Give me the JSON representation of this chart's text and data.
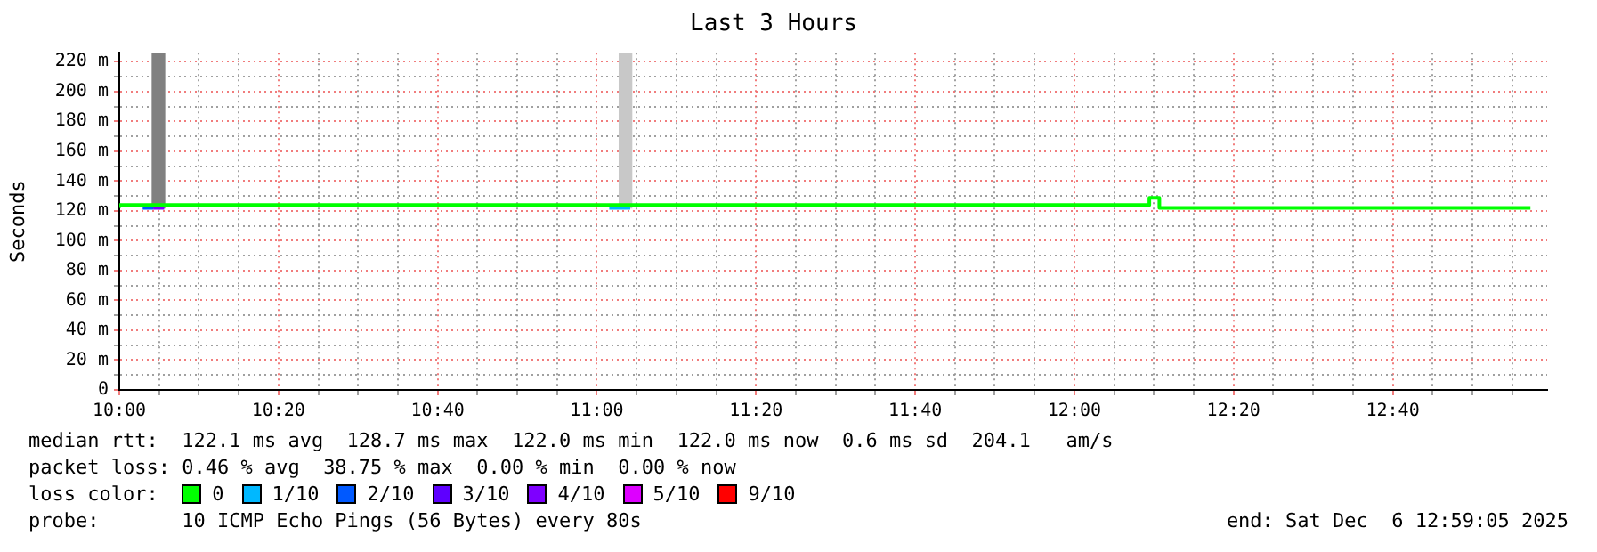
{
  "chart_data": {
    "type": "step",
    "title": "Last 3 Hours",
    "ylabel": "Seconds",
    "xlim": [
      10,
      12.99
    ],
    "ylim": [
      0,
      226
    ],
    "xticks": [
      {
        "value": 10,
        "label": "10:00"
      },
      {
        "value": 10.0833,
        "label": null
      },
      {
        "value": 10.1667,
        "label": null
      },
      {
        "value": 10.25,
        "label": null
      },
      {
        "value": 10.3333,
        "label": "10:20"
      },
      {
        "value": 10.4167,
        "label": null
      },
      {
        "value": 10.5,
        "label": null
      },
      {
        "value": 10.5833,
        "label": null
      },
      {
        "value": 10.6667,
        "label": "10:40"
      },
      {
        "value": 10.75,
        "label": null
      },
      {
        "value": 10.8333,
        "label": null
      },
      {
        "value": 10.9167,
        "label": null
      },
      {
        "value": 11,
        "label": "11:00"
      },
      {
        "value": 11.0833,
        "label": null
      },
      {
        "value": 11.1667,
        "label": null
      },
      {
        "value": 11.25,
        "label": null
      },
      {
        "value": 11.3333,
        "label": "11:20"
      },
      {
        "value": 11.4167,
        "label": null
      },
      {
        "value": 11.5,
        "label": null
      },
      {
        "value": 11.5833,
        "label": null
      },
      {
        "value": 11.6667,
        "label": "11:40"
      },
      {
        "value": 11.75,
        "label": null
      },
      {
        "value": 11.8333,
        "label": null
      },
      {
        "value": 11.9167,
        "label": null
      },
      {
        "value": 12,
        "label": "12:00"
      },
      {
        "value": 12.0833,
        "label": null
      },
      {
        "value": 12.1667,
        "label": null
      },
      {
        "value": 12.25,
        "label": null
      },
      {
        "value": 12.3333,
        "label": "12:20"
      },
      {
        "value": 12.4167,
        "label": null
      },
      {
        "value": 12.5,
        "label": null
      },
      {
        "value": 12.5833,
        "label": null
      },
      {
        "value": 12.6667,
        "label": "12:40"
      },
      {
        "value": 12.75,
        "label": null
      },
      {
        "value": 12.8333,
        "label": null
      },
      {
        "value": 12.9167,
        "label": null
      }
    ],
    "yticks": [
      0,
      {
        "value": 10,
        "label": null
      },
      {
        "value": 20,
        "label": "20 m"
      },
      {
        "value": 30,
        "label": null
      },
      {
        "value": 40,
        "label": "40 m"
      },
      {
        "value": 50,
        "label": null
      },
      {
        "value": 60,
        "label": "60 m"
      },
      {
        "value": 70,
        "label": null
      },
      {
        "value": 80,
        "label": "80 m"
      },
      {
        "value": 90,
        "label": null
      },
      {
        "value": 100,
        "label": "100 m"
      },
      {
        "value": 110,
        "label": null
      },
      {
        "value": 120,
        "label": "120 m"
      },
      {
        "value": 130,
        "label": null
      },
      {
        "value": 140,
        "label": "140 m"
      },
      {
        "value": 150,
        "label": null
      },
      {
        "value": 160,
        "label": "160 m"
      },
      {
        "value": 170,
        "label": null
      },
      {
        "value": 180,
        "label": "180 m"
      },
      {
        "value": 190,
        "label": null
      },
      {
        "value": 200,
        "label": "200 m"
      },
      {
        "value": 210,
        "label": null
      },
      {
        "value": 220,
        "label": "220 m"
      }
    ],
    "grid": true,
    "legend": "bottom",
    "legend_title": "loss color:",
    "series": [
      {
        "type": "bar",
        "colors": [
          "#808080",
          "#c8c8c8"
        ],
        "x": [
          10.082,
          11.06
        ],
        "base": [
          122,
          122
        ],
        "values": [
          104,
          104
        ]
      },
      {
        "name": "0",
        "color": "#00ff00",
        "x": [
          10,
          12.157,
          12.178,
          12.2,
          12.955
        ],
        "values": [
          122,
          124,
          128.7,
          122,
          122
        ]
      },
      {
        "name": "1/10",
        "color": "#00b8ff",
        "x": [
          11.026,
          11.07
        ],
        "values": [
          122,
          122
        ]
      },
      {
        "name": "2/10",
        "color": "#0059ff",
        "x": [
          10.049,
          10.071
        ],
        "values": [
          122,
          122
        ]
      },
      {
        "name": "3/10",
        "color": "#5e00ff"
      },
      {
        "name": "4/10",
        "color": "#7e00ff",
        "x": [
          10.071,
          10.094
        ],
        "values": [
          122,
          122
        ]
      },
      {
        "name": "5/10",
        "color": "#dd00ff"
      },
      {
        "name": "9/10",
        "color": "#ff0000"
      }
    ],
    "annotations": [
      "median rtt:  122.1 ms avg  128.7 ms max  122.0 ms min  122.0 ms now  0.6 ms sd  204.1   am/s",
      "packet loss: 0.46 % avg  38.75 % max  0.00 % min  0.00 % now",
      "probe:       10 ICMP Echo Pings (56 Bytes) every 80s",
      "end: Sat Dec  6 12:59:05 2025"
    ]
  }
}
